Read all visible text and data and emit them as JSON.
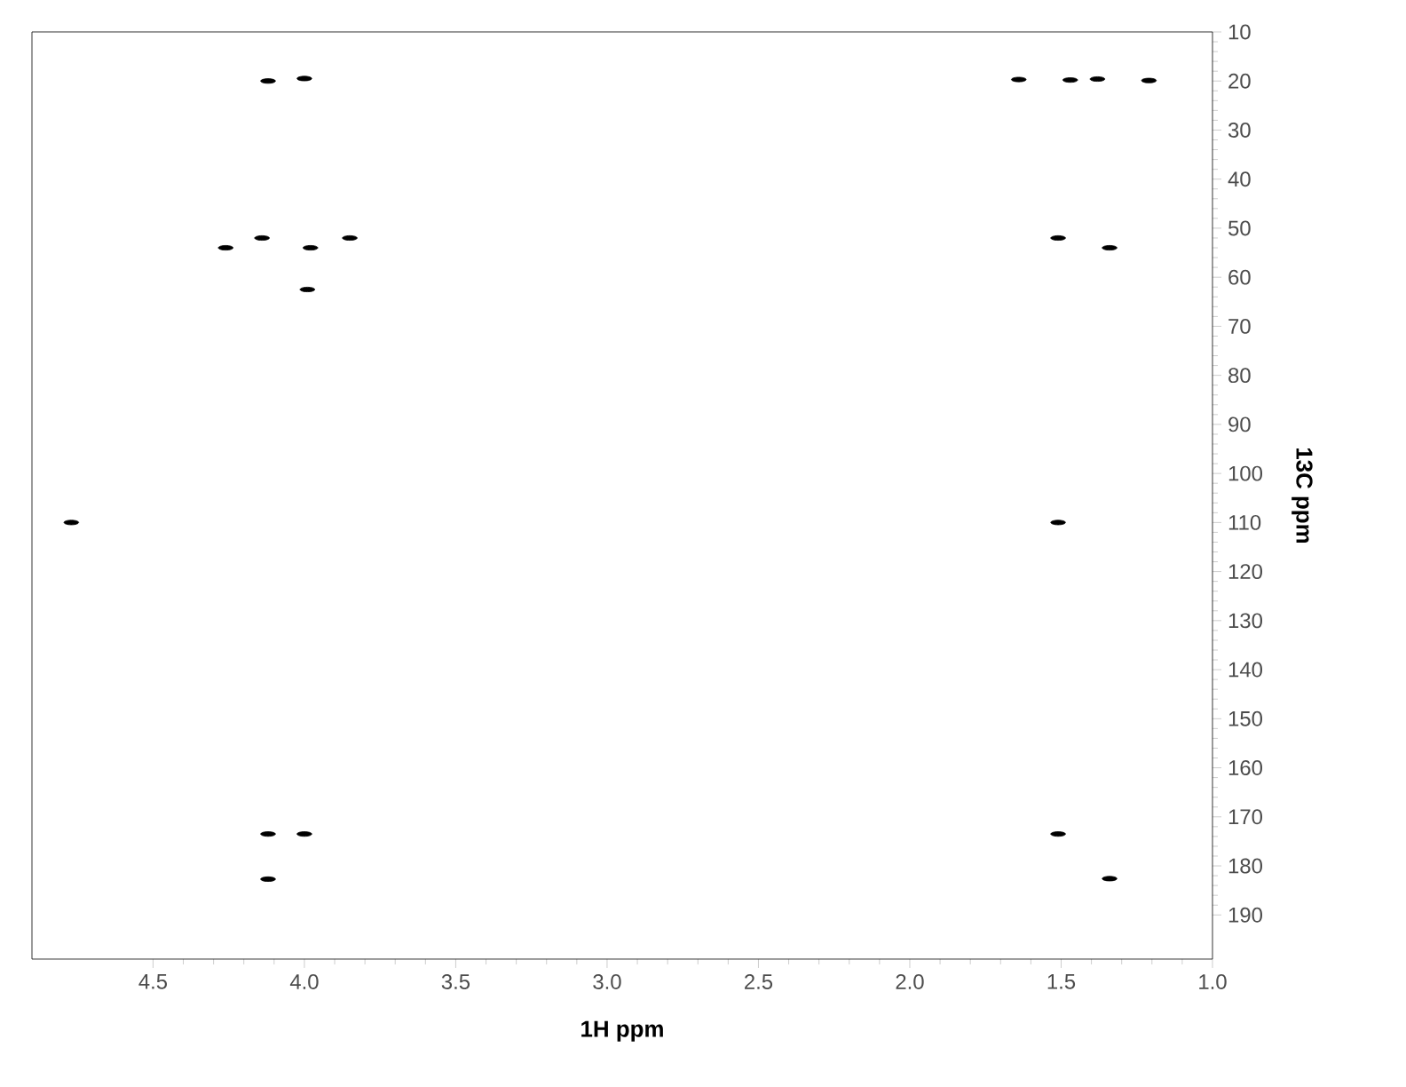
{
  "chart_data": {
    "type": "scatter",
    "xlabel": "1H ppm",
    "ylabel": "13C ppm",
    "xlim": [
      4.9,
      1.0
    ],
    "ylim": [
      199,
      10
    ],
    "xticks": [
      4.5,
      {
        "value": 4,
        "label": "4.0"
      },
      3.5,
      {
        "value": 3,
        "label": "3.0"
      },
      2.5,
      {
        "value": 2,
        "label": "2.0"
      },
      1.5,
      {
        "value": 1,
        "label": "1.0"
      }
    ],
    "yticks": [
      10,
      20,
      30,
      40,
      50,
      60,
      70,
      80,
      90,
      100,
      110,
      120,
      130,
      140,
      150,
      160,
      170,
      180,
      190
    ],
    "grid": false,
    "series": [
      {
        "color": "#000000",
        "x": [
          4.12,
          4.0,
          4.14,
          4.26,
          3.98,
          3.85,
          3.99,
          4.77,
          1.64,
          1.47,
          1.38,
          1.21,
          1.51,
          1.34,
          1.51,
          4.12,
          4.0,
          4.12,
          1.51,
          1.34
        ],
        "values": [
          20,
          19.5,
          52,
          54,
          54,
          52,
          62.5,
          110,
          19.7,
          19.8,
          19.6,
          19.9,
          52,
          54,
          110,
          173.5,
          173.5,
          182.7,
          173.5,
          182.6
        ]
      }
    ]
  }
}
